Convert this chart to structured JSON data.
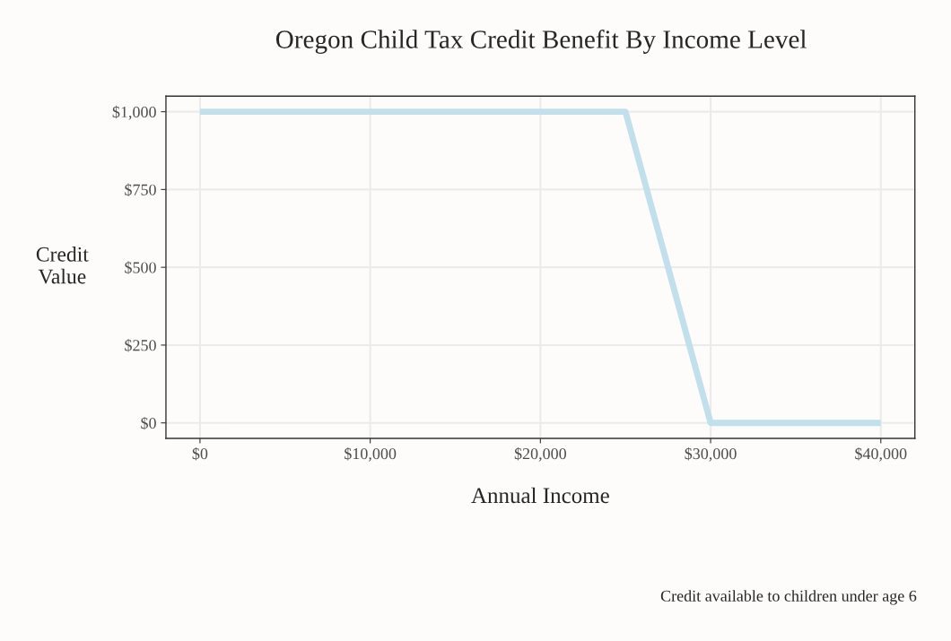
{
  "chart_data": {
    "type": "line",
    "title": "Oregon Child Tax Credit Benefit By Income Level",
    "xlabel": "Annual Income",
    "ylabel": "Credit\nValue",
    "x": [
      0,
      25000,
      30000,
      40000
    ],
    "series": [
      {
        "color": "#c2e0eb",
        "values": [
          1000,
          1000,
          0,
          0
        ]
      }
    ],
    "xlim": [
      -2000,
      42000
    ],
    "ylim": [
      -50,
      1050
    ],
    "xticks": [
      {
        "value": 0,
        "label": "$0"
      },
      {
        "value": 10000,
        "label": "$10,000"
      },
      {
        "value": 20000,
        "label": "$20,000"
      },
      {
        "value": 30000,
        "label": "$30,000"
      },
      {
        "value": 40000,
        "label": "$40,000"
      }
    ],
    "yticks": [
      {
        "value": 0,
        "label": "$0"
      },
      {
        "value": 250,
        "label": "$250"
      },
      {
        "value": 500,
        "label": "$500"
      },
      {
        "value": 750,
        "label": "$750"
      },
      {
        "value": 1000,
        "label": "$1,000"
      }
    ],
    "grid": true,
    "legend": false,
    "annotations": [
      "Credit available to children under age 6"
    ]
  }
}
